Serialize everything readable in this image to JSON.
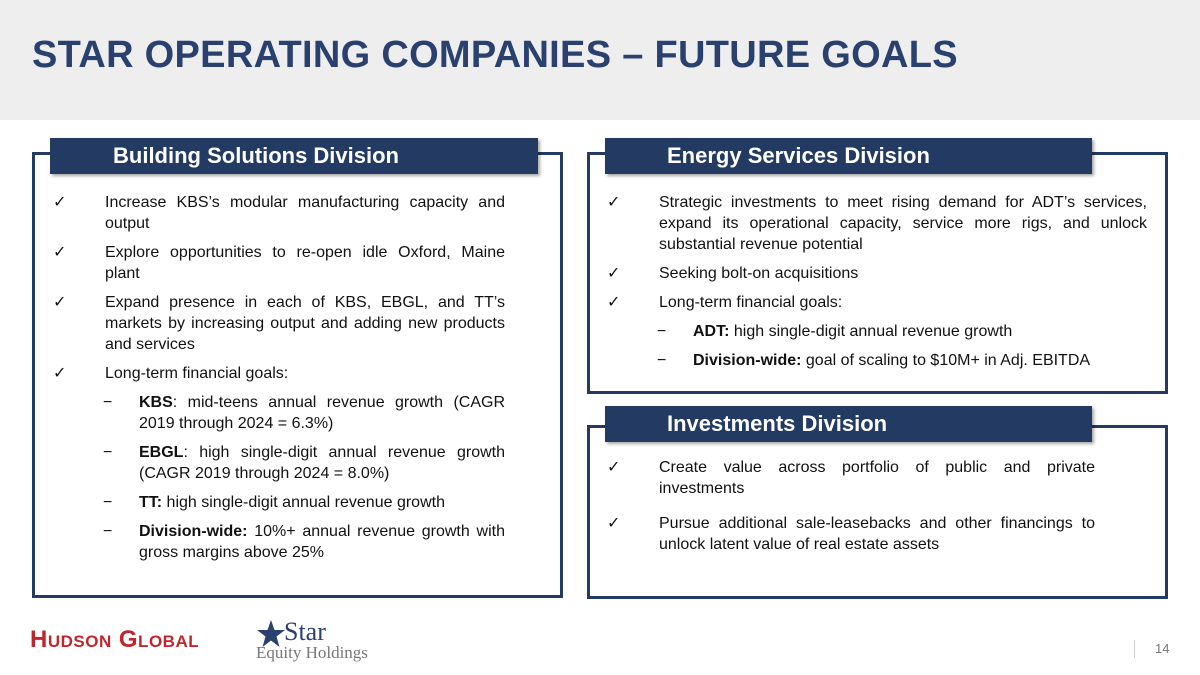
{
  "title": "STAR OPERATING COMPANIES – FUTURE GOALS",
  "panels": [
    {
      "heading": "Building Solutions Division",
      "items": [
        {
          "text": "Increase KBS’s modular manufacturing capacity and output"
        },
        {
          "text": "Explore opportunities to re-open idle Oxford, Maine plant"
        },
        {
          "text": "Expand presence in each of KBS, EBGL, and TT’s markets by increasing output and adding new products and services"
        },
        {
          "text": "Long-term financial goals:",
          "subitems": [
            {
              "bold": "KBS",
              "text": ": mid-teens annual revenue growth (CAGR 2019 through 2024 = 6.3%)"
            },
            {
              "bold": "EBGL",
              "text": ": high single-digit annual revenue growth (CAGR 2019 through 2024 = 8.0%)"
            },
            {
              "bold": "TT:",
              "text": " high single-digit annual revenue growth"
            },
            {
              "bold": "Division-wide:",
              "text": " 10%+ annual revenue growth with gross margins above 25%"
            }
          ]
        }
      ]
    },
    {
      "heading": "Energy Services Division",
      "items": [
        {
          "text": "Strategic investments to meet rising demand for ADT’s services, expand its operational capacity, service more rigs, and unlock substantial revenue potential"
        },
        {
          "text": "Seeking bolt-on acquisitions"
        },
        {
          "text": "Long-term financial goals:",
          "subitems": [
            {
              "bold": "ADT:",
              "text": " high single-digit annual revenue growth"
            },
            {
              "bold": "Division-wide:",
              "text": " goal of scaling to $10M+ in Adj. EBITDA"
            }
          ]
        }
      ]
    },
    {
      "heading": "Investments Division",
      "items": [
        {
          "text": "Create value across portfolio of public and private investments"
        },
        {
          "text": "Pursue additional sale-leasebacks and other financings to unlock latent value of real estate assets"
        }
      ]
    }
  ],
  "footer": {
    "logo_left": "Hudson Global",
    "logo_right_top": "Star",
    "logo_right_bottom": "Equity Holdings",
    "page_number": "14"
  }
}
